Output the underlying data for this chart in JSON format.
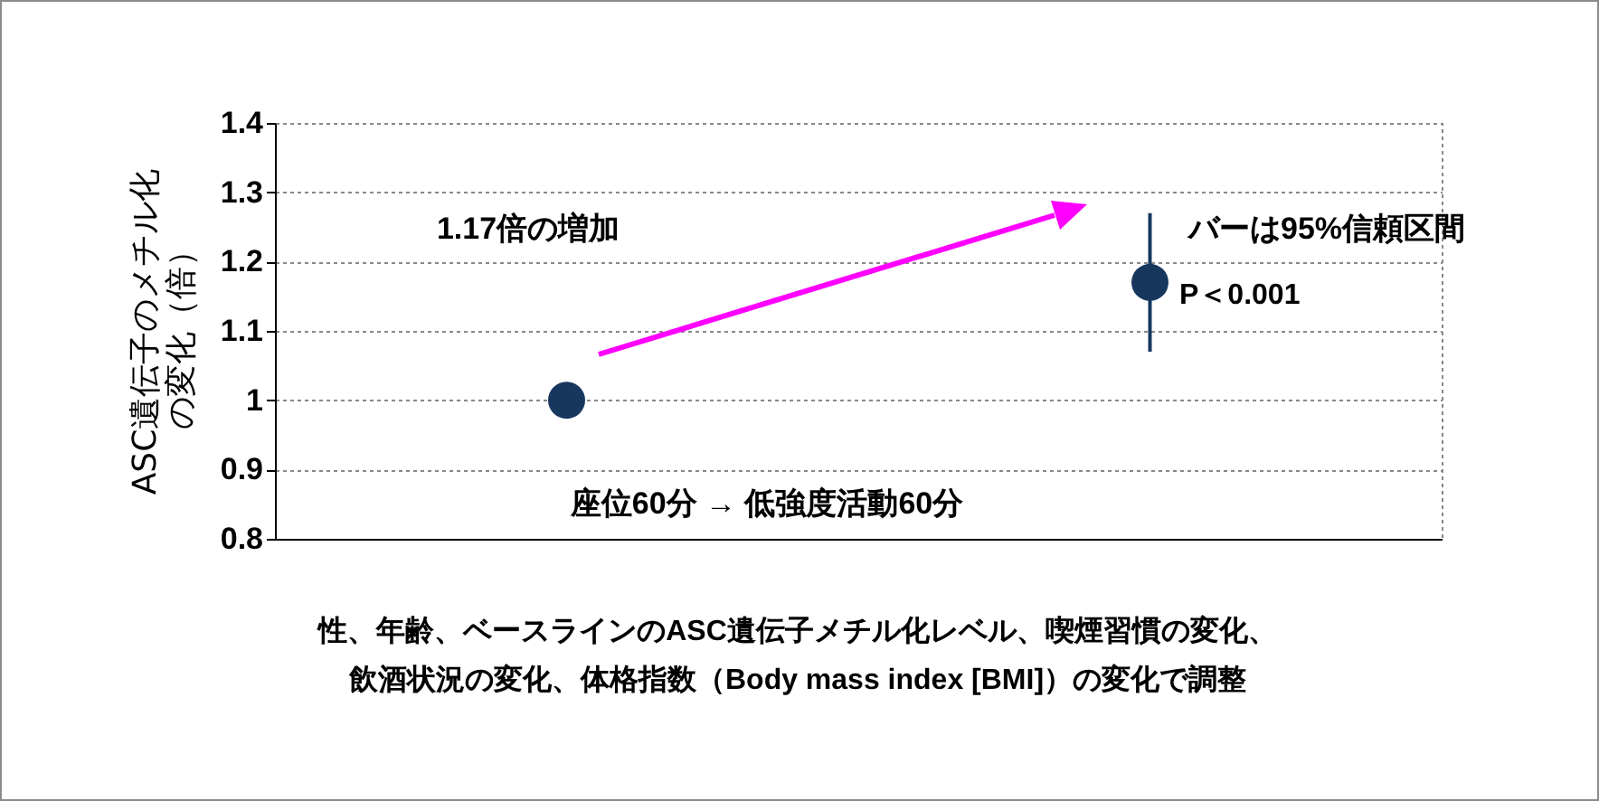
{
  "chart_data": {
    "type": "scatter",
    "ylabel": "ASC遺伝子のメチル化の変化（倍）",
    "categories": [
      null,
      null
    ],
    "values": [
      1.0,
      1.17
    ],
    "errors": [
      null,
      [
        1.07,
        1.27
      ]
    ],
    "color": "#17375e",
    "marker": "circle",
    "ylim": [
      0.8,
      1.4
    ],
    "yticks": [
      0.8,
      0.9,
      1,
      1.1,
      1.2,
      1.3,
      1.4
    ],
    "grid": "y",
    "annotations": [
      "1.17倍の増加",
      "バーは95%信頼区間",
      "P＜0.001",
      "座位60分 → 低強度活動60分",
      "性、年齢、ベースラインのASC遺伝子メチル化レベル、喫煙習慣の変化、",
      "飲酒状況の変化、体格指数（Body mass index [BMI]）の変化で調整"
    ]
  }
}
